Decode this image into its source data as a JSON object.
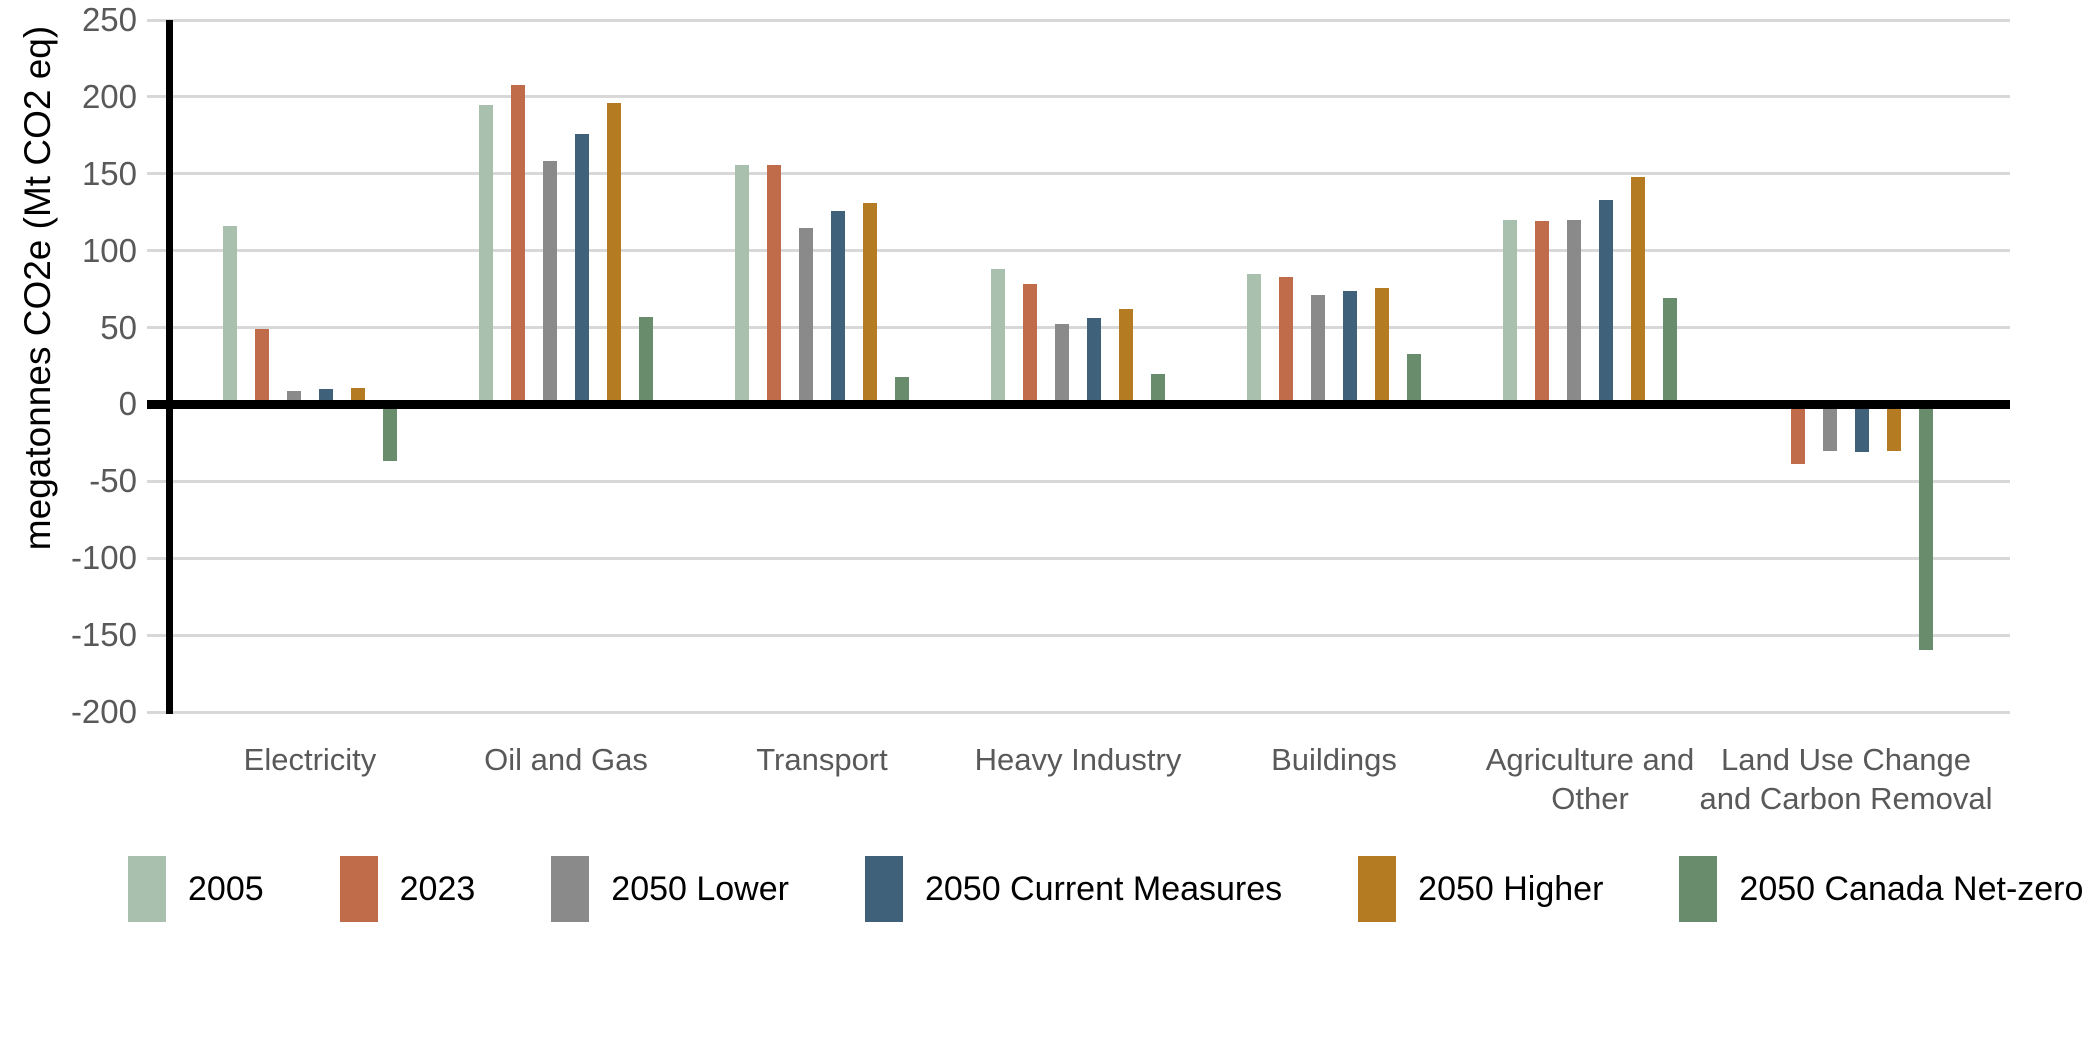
{
  "chart_data": {
    "type": "bar",
    "title": "",
    "xlabel": "",
    "ylabel": "megatonnes CO2e (Mt CO2 eq)",
    "ylim": [
      -200,
      250
    ],
    "ytick_step": 50,
    "yticks": [
      "250",
      "200",
      "150",
      "100",
      "50",
      "0",
      "-50",
      "-100",
      "-150",
      "-200"
    ],
    "grid": "horizontal gridlines every 50, light gray; bold black zero line; bold black y-axis line",
    "legend_position": "bottom",
    "categories": [
      "Electricity",
      "Oil and Gas",
      "Transport",
      "Heavy Industry",
      "Buildings",
      "Agriculture and\nOther",
      "Land Use Change\nand Carbon Removal"
    ],
    "series": [
      {
        "name": "2005",
        "color": "#aac0ae",
        "values": [
          116,
          195,
          156,
          88,
          85,
          120,
          0
        ]
      },
      {
        "name": "2023",
        "color": "#c06b4a",
        "values": [
          49,
          208,
          156,
          78,
          83,
          119,
          -39
        ]
      },
      {
        "name": "2050 Lower",
        "color": "#8a8a8a",
        "values": [
          9,
          158,
          115,
          52,
          71,
          120,
          -30
        ]
      },
      {
        "name": "2050 Current Measures",
        "color": "#3f627a",
        "values": [
          10,
          176,
          126,
          56,
          74,
          133,
          -31
        ]
      },
      {
        "name": "2050 Higher",
        "color": "#b57b22",
        "values": [
          11,
          196,
          131,
          62,
          76,
          148,
          -30
        ]
      },
      {
        "name": "2050 Canada Net-zero",
        "color": "#688c6c",
        "values": [
          -37,
          57,
          18,
          20,
          33,
          69,
          -160
        ]
      }
    ],
    "colors": {
      "gridline": "#d8d8d8",
      "zero_line": "#000000",
      "axis_line": "#000000",
      "tick_label": "#595959",
      "category_label": "#595959",
      "legend_text": "#000000"
    }
  }
}
